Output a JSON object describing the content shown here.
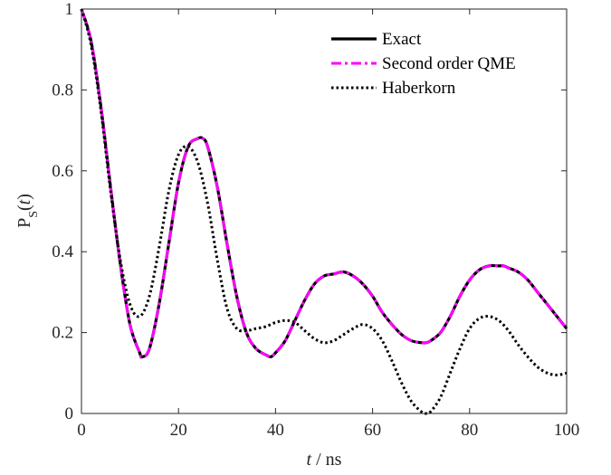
{
  "chart_data": {
    "type": "line",
    "title": "",
    "xlabel": {
      "italic": "t",
      "rest": " / ns"
    },
    "ylabel": {
      "base": "P",
      "sub": "S",
      "open": "(",
      "arg": "t",
      "close": ")"
    },
    "xlim": [
      0,
      100
    ],
    "ylim": [
      0,
      1
    ],
    "xticks": [
      0,
      20,
      40,
      60,
      80,
      100
    ],
    "yticks": [
      0,
      0.2,
      0.4,
      0.6,
      0.8,
      1
    ],
    "ytick_labels": [
      "0",
      "0.2",
      "0.4",
      "0.6",
      "0.8",
      "1"
    ],
    "grid": false,
    "legend_position": "top-right",
    "series": [
      {
        "name": "Exact",
        "color": "#000000",
        "style": "solid",
        "x": [
          0,
          2,
          4,
          6,
          8,
          10,
          12,
          12.5,
          14,
          16,
          18,
          20,
          22,
          24,
          25,
          26,
          28,
          30,
          32,
          34,
          36,
          38,
          39,
          40,
          42,
          44,
          46,
          48,
          50,
          52,
          54,
          56,
          58,
          60,
          62,
          64,
          66,
          68,
          70,
          71,
          72,
          74,
          76,
          78,
          80,
          82,
          84,
          86,
          87,
          88,
          90,
          92,
          94,
          96,
          98,
          100
        ],
        "y": [
          1.0,
          0.92,
          0.76,
          0.56,
          0.37,
          0.22,
          0.15,
          0.14,
          0.16,
          0.27,
          0.42,
          0.57,
          0.66,
          0.68,
          0.68,
          0.66,
          0.56,
          0.42,
          0.29,
          0.2,
          0.16,
          0.145,
          0.14,
          0.15,
          0.18,
          0.23,
          0.28,
          0.32,
          0.34,
          0.345,
          0.35,
          0.34,
          0.32,
          0.29,
          0.25,
          0.22,
          0.195,
          0.18,
          0.175,
          0.175,
          0.18,
          0.2,
          0.24,
          0.29,
          0.33,
          0.355,
          0.365,
          0.365,
          0.365,
          0.36,
          0.35,
          0.33,
          0.3,
          0.27,
          0.24,
          0.21
        ]
      },
      {
        "name": "Second order QME",
        "color": "#ff00ff",
        "style": "dashdot",
        "x": [
          0,
          2,
          4,
          6,
          8,
          10,
          12,
          12.5,
          14,
          16,
          18,
          20,
          22,
          24,
          25,
          26,
          28,
          30,
          32,
          34,
          36,
          38,
          39,
          40,
          42,
          44,
          46,
          48,
          50,
          52,
          54,
          56,
          58,
          60,
          62,
          64,
          66,
          68,
          70,
          71,
          72,
          74,
          76,
          78,
          80,
          82,
          84,
          86,
          87,
          88,
          90,
          92,
          94,
          96,
          98,
          100
        ],
        "y": [
          1.0,
          0.92,
          0.76,
          0.56,
          0.37,
          0.22,
          0.15,
          0.14,
          0.16,
          0.27,
          0.42,
          0.57,
          0.66,
          0.68,
          0.68,
          0.66,
          0.56,
          0.42,
          0.29,
          0.2,
          0.16,
          0.145,
          0.14,
          0.15,
          0.18,
          0.23,
          0.28,
          0.32,
          0.34,
          0.345,
          0.35,
          0.34,
          0.32,
          0.29,
          0.25,
          0.22,
          0.195,
          0.18,
          0.175,
          0.175,
          0.18,
          0.2,
          0.24,
          0.29,
          0.33,
          0.355,
          0.365,
          0.365,
          0.365,
          0.36,
          0.35,
          0.33,
          0.3,
          0.27,
          0.24,
          0.21
        ]
      },
      {
        "name": "Haberkorn",
        "color": "#000000",
        "style": "dotted",
        "x": [
          0,
          2,
          4,
          6,
          8,
          10,
          12,
          14,
          16,
          18,
          20,
          22,
          24,
          26,
          28,
          30,
          32,
          34,
          36,
          38,
          40,
          42,
          44,
          46,
          48,
          50,
          52,
          54,
          56,
          58,
          60,
          62,
          64,
          66,
          68,
          70,
          71,
          72,
          74,
          76,
          78,
          80,
          82,
          84,
          86,
          88,
          90,
          92,
          94,
          96,
          98,
          100
        ],
        "y": [
          1.0,
          0.91,
          0.75,
          0.55,
          0.38,
          0.27,
          0.24,
          0.29,
          0.41,
          0.55,
          0.64,
          0.66,
          0.62,
          0.52,
          0.38,
          0.26,
          0.21,
          0.205,
          0.21,
          0.215,
          0.225,
          0.23,
          0.225,
          0.205,
          0.185,
          0.175,
          0.18,
          0.195,
          0.21,
          0.22,
          0.21,
          0.18,
          0.13,
          0.075,
          0.03,
          0.005,
          0.0,
          0.005,
          0.04,
          0.1,
          0.16,
          0.21,
          0.235,
          0.24,
          0.23,
          0.205,
          0.17,
          0.14,
          0.115,
          0.1,
          0.095,
          0.1
        ]
      }
    ]
  }
}
